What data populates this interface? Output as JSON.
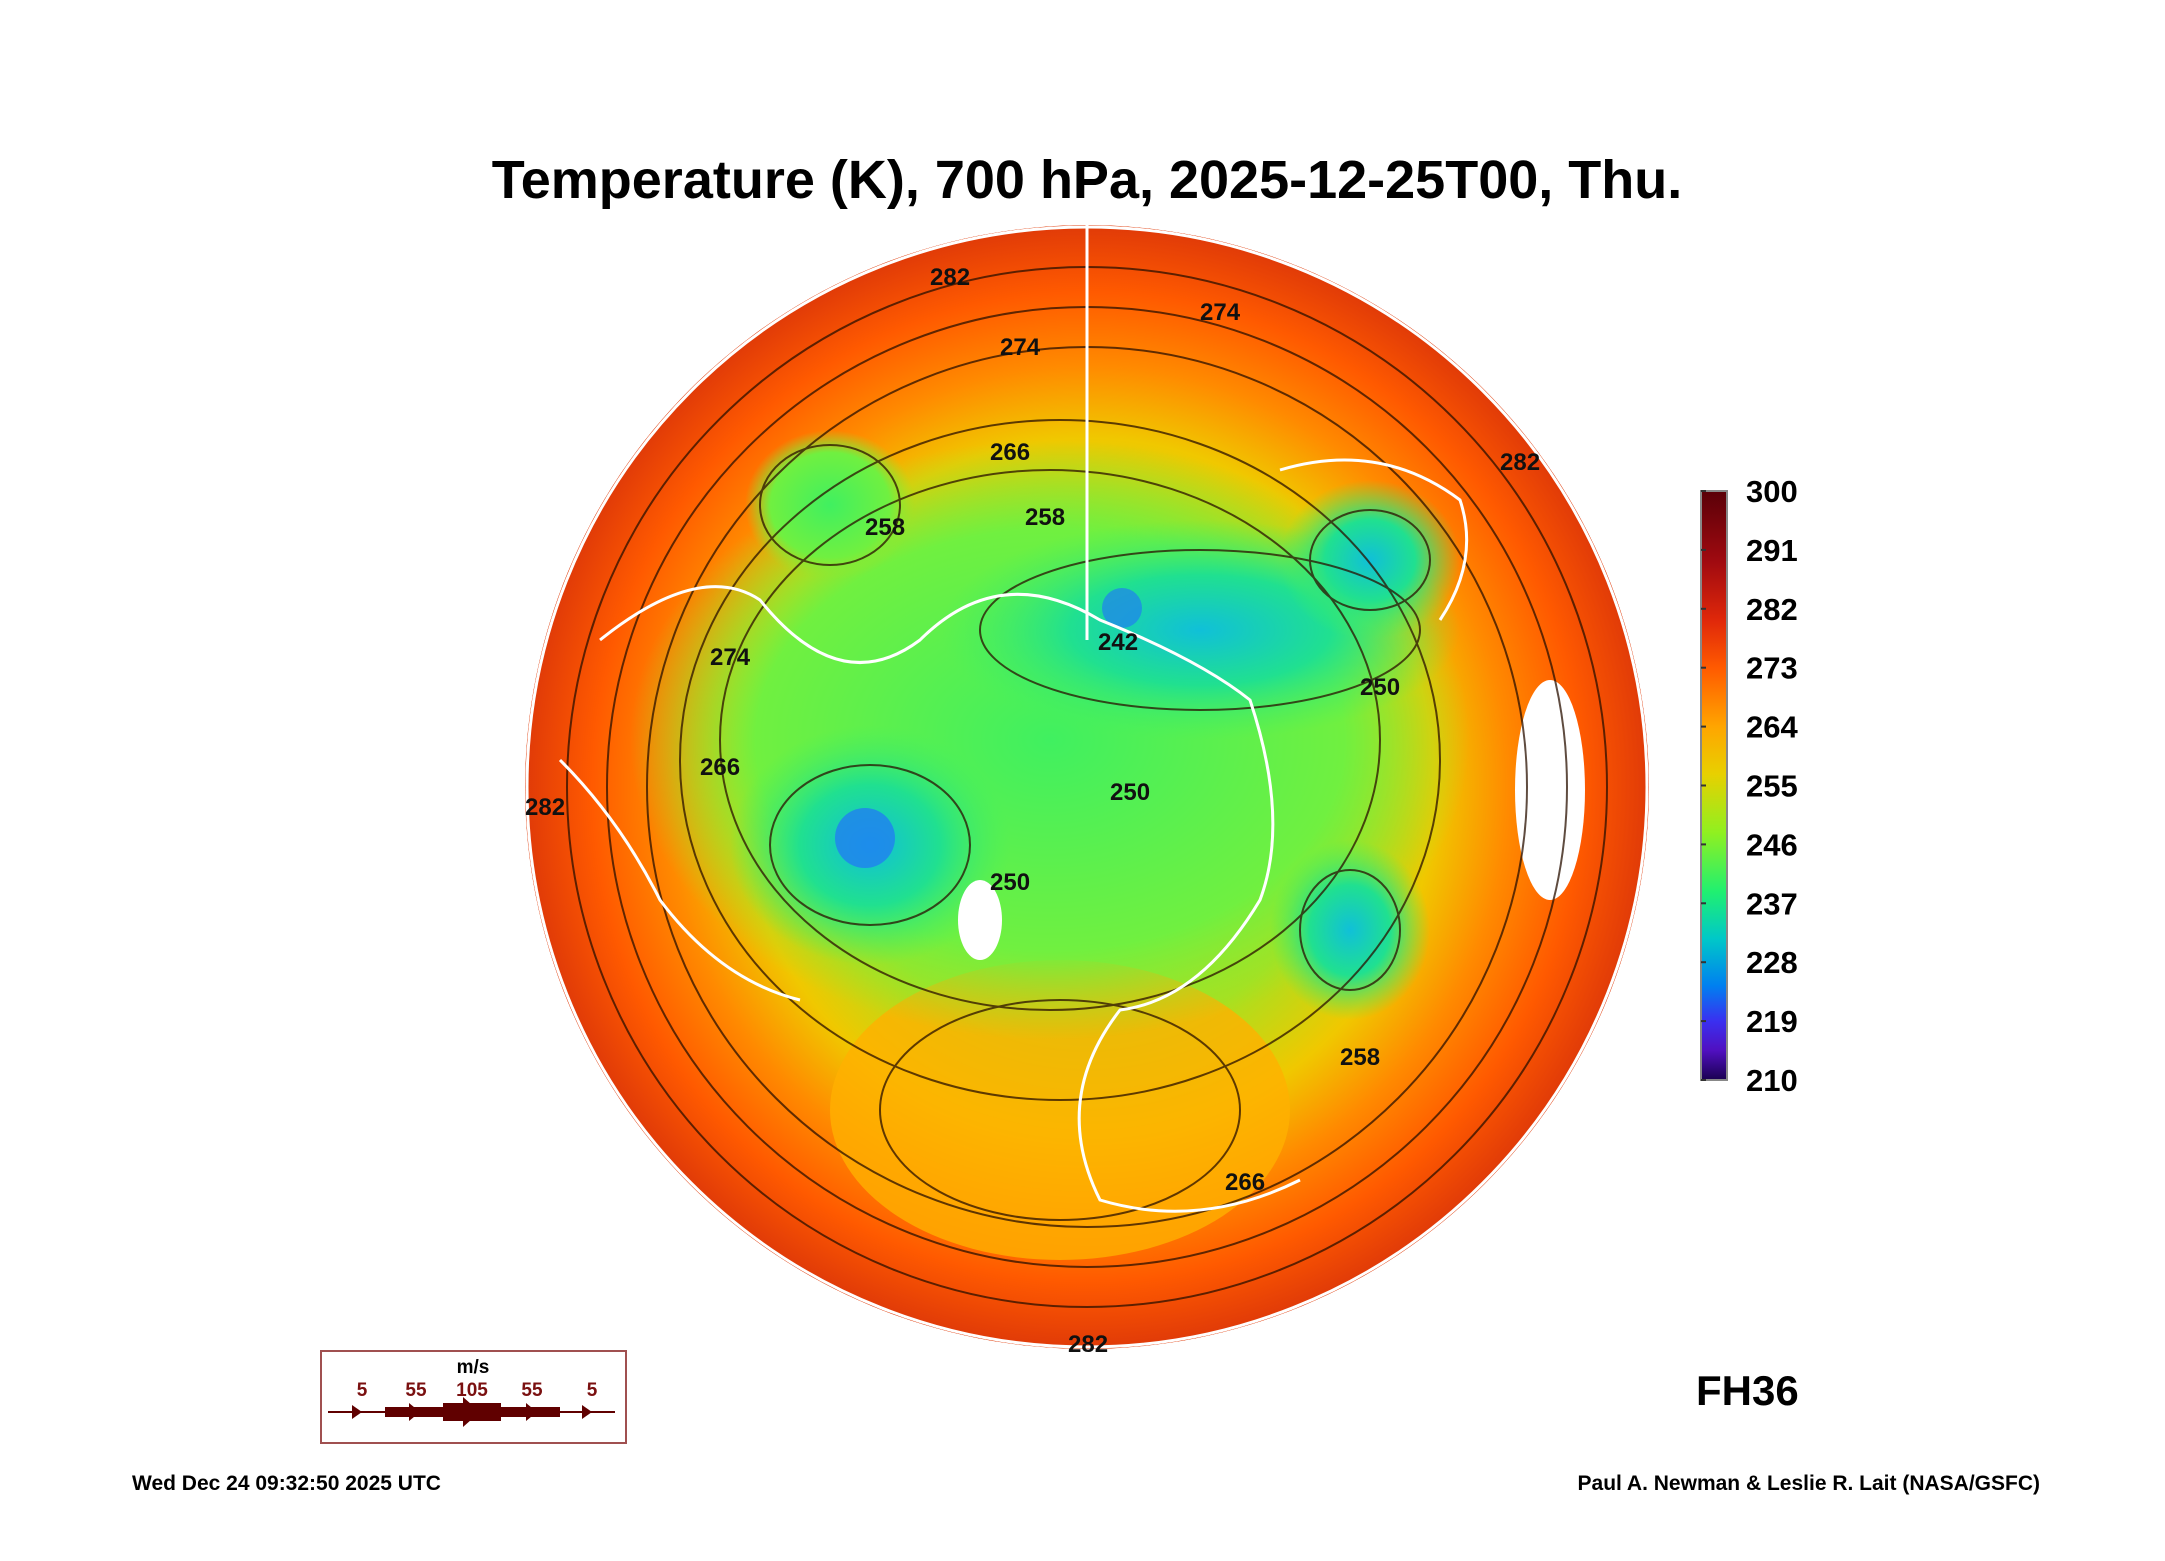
{
  "chart_data": {
    "type": "heatmap",
    "projection": "north-polar-stereographic",
    "title": "Temperature (K), 700 hPa, 2025-12-25T00, Thu.",
    "colorbar": {
      "min": 210,
      "max": 300,
      "ticks": [
        "300",
        "291",
        "282",
        "273",
        "264",
        "255",
        "246",
        "237",
        "228",
        "219",
        "210"
      ],
      "colors": [
        "#5a0008",
        "#a00a10",
        "#e0280a",
        "#ff5a00",
        "#ffa500",
        "#e8d000",
        "#90f020",
        "#20f070",
        "#00c8c8",
        "#0080f0",
        "#3a30f0",
        "#5010c0",
        "#1a0050"
      ]
    },
    "contour_labels": [
      "282",
      "274",
      "274",
      "266",
      "258",
      "258",
      "250",
      "242",
      "250",
      "266",
      "282",
      "274",
      "266",
      "258",
      "250",
      "282",
      "282"
    ],
    "wind_legend": {
      "unit": "m/s",
      "labels": [
        "5",
        "55",
        "105",
        "55",
        "5"
      ],
      "color": "#6a0000"
    },
    "forecast_hour": "FH36",
    "footer_left": "Wed Dec 24 09:32:50 2025 UTC",
    "footer_right": "Paul A. Newman & Leslie R. Lait (NASA/GSFC)"
  }
}
